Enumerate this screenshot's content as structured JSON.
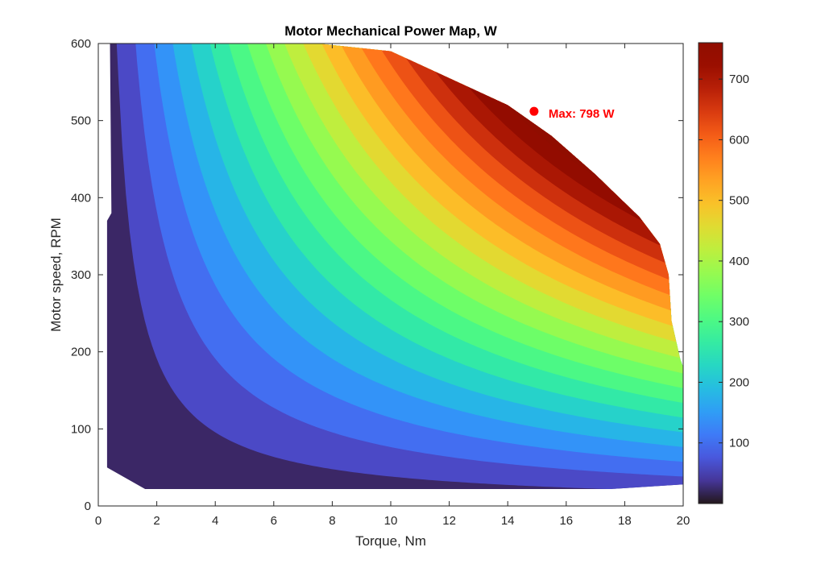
{
  "chart_data": {
    "type": "heatmap",
    "subtype": "filled-contour",
    "title": "Motor Mechanical Power Map, W",
    "xlabel": "Torque, Nm",
    "ylabel": "Motor speed, RPM",
    "xlim": [
      0,
      20
    ],
    "ylim": [
      0,
      600
    ],
    "xticks": [
      "0",
      "2",
      "4",
      "6",
      "8",
      "10",
      "12",
      "14",
      "16",
      "18",
      "20"
    ],
    "yticks": [
      "0",
      "100",
      "200",
      "300",
      "400",
      "500",
      "600"
    ],
    "grid": false,
    "colormap": "turbo",
    "colorbar": {
      "range": [
        0,
        760
      ],
      "ticks": [
        "100",
        "200",
        "300",
        "400",
        "500",
        "600",
        "700"
      ],
      "placement": "right"
    },
    "formula": "power_W = torque_Nm * speed_RPM * 2*pi/60",
    "contour_levels": [
      40,
      80,
      120,
      160,
      200,
      240,
      280,
      320,
      360,
      400,
      440,
      480,
      520,
      560,
      600,
      640,
      680,
      720,
      760,
      800
    ],
    "boundary": {
      "upper_envelope": [
        {
          "torque": 0.4,
          "speed": 600
        },
        {
          "torque": 7.5,
          "speed": 600
        },
        {
          "torque": 10.0,
          "speed": 590
        },
        {
          "torque": 12.0,
          "speed": 555
        },
        {
          "torque": 14.0,
          "speed": 520
        },
        {
          "torque": 15.5,
          "speed": 480
        },
        {
          "torque": 17.0,
          "speed": 430
        },
        {
          "torque": 18.5,
          "speed": 375
        },
        {
          "torque": 19.2,
          "speed": 340
        },
        {
          "torque": 19.5,
          "speed": 300
        },
        {
          "torque": 19.6,
          "speed": 240
        },
        {
          "torque": 19.9,
          "speed": 190
        },
        {
          "torque": 20.0,
          "speed": 180
        }
      ],
      "lower_envelope": [
        {
          "torque": 20.0,
          "speed": 28
        },
        {
          "torque": 17.5,
          "speed": 22
        },
        {
          "torque": 1.6,
          "speed": 22
        },
        {
          "torque": 0.3,
          "speed": 50
        }
      ],
      "left_envelope": [
        {
          "torque": 0.3,
          "speed": 50
        },
        {
          "torque": 0.3,
          "speed": 370
        },
        {
          "torque": 0.45,
          "speed": 380
        },
        {
          "torque": 0.4,
          "speed": 600
        }
      ]
    },
    "annotations": [
      {
        "label": "Max: 798 W",
        "torque": 14.9,
        "speed": 512,
        "color": "#ff0000"
      }
    ]
  }
}
